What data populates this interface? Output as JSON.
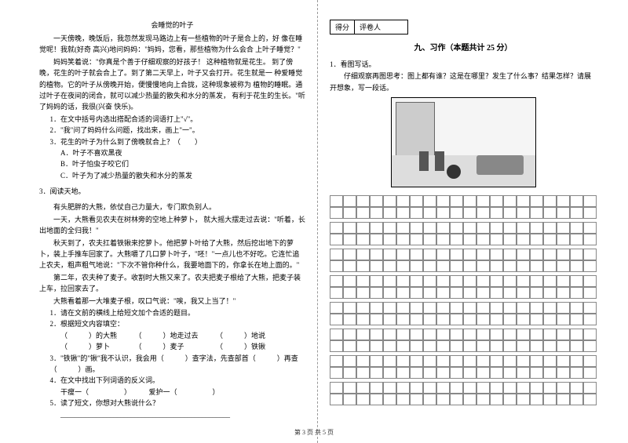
{
  "left": {
    "story1_title": "会睡觉的叶子",
    "story1_p1": "一天傍晚，晚饭后，我忽然发现马路边上有一些植物的叶子是合上的，好 像在睡觉呢！我就(好奇 高兴)地问妈妈：\"妈妈，您看，那些植物为什么会合 上叶子睡觉？\"",
    "story1_p2": "妈妈笑着说：\"你真是个善于仔细观察的好孩子！ 这种植物就是花生。 到了傍晚，花生的叶子就会合上了。到了第二天早上，叶子又会打开。花生就是一 种爱睡觉的植物。它的叶子从傍晚开始，便慢慢地向上合拢，这种现象被称为 植物的睡眠。通过叶子在夜间的闭合，就可以减少热量的散失和水分的蒸发， 有利于花生的生长。\"听了妈妈的话，我很(兴奋 快乐)。",
    "q1": "1．在文中括号内选出搭配合适的词语打上\"√\"。",
    "q2": "2．\"我\"问了妈妈什么问题，找出来，画上\"一\"。",
    "q3": "3．花生的叶子为什么到了傍晚就合上？（　　）",
    "q3a": "A．叶子不喜欢黑夜",
    "q3b": "B．叶子怕虫子咬它们",
    "q3c": "C．叶子为了减少热量的散失和水分的蒸发",
    "story2_title": "3．阅读天地。",
    "story2_p1": "有头肥胖的大熊，依仗自己力量大，专门欺负别人。",
    "story2_p2": "一天，大熊看见农夫在树林旁的空地上种萝卜， 就大摇大摆走过去说：\"听着，长出地面的全归我！\"",
    "story2_p3": "秋天到了，农夫扛着铁锹来挖萝卜。他把萝卜叶给了大熊，然后挖出地下的萝卜，装上手推车回家了。大熊嚼了几口萝卜叶子，\"呸！\"一点儿也不好吃。它连忙追上农夫，粗声粗气地说：\"下次不管你种什么，我要地面下的，你拿长在地上面的。\"",
    "story2_p4": "第二年，农夫种了麦子。收割时大熊又来了。农夫把麦子根给了大熊，把麦子装上车，拉回家去了。",
    "story2_p5": "大熊看着那一大堆麦子根，叹口气说：\"唉，我又上当了！\"",
    "sq1": "1．请在文前的横线上给短文加个合适的题目。",
    "sq2": "2．根据短文内容填空：",
    "sq2a": "（　　　）的大熊　　　（　　　）地走过去　　　（　　　）地说",
    "sq2b": "（　　　）萝卜　　　　（　　　）麦子　　　　　（　　　）铁锹",
    "sq3": "3．\"铁锹\"的\"锹\"我不认识，我会用（　　　）查字法，先查部首（　　　）再查（　　　）画。",
    "sq4": "4．在文中找出下列词语的反义词。",
    "sq4a": "干瘦一（　　　　　）　　　爱护一（　　　　　）",
    "sq5": "5．读了短文，你想对大熊说什么？",
    "sq5_line": "________________________________________________"
  },
  "right": {
    "score_label1": "得分",
    "score_label2": "评卷人",
    "section_title": "九、习作（本题共计 25 分）",
    "q1": "1．看图写话。",
    "q1_desc": "仔细观察再图思考：图上都有谁？这是在哪里？发生了什么事？结果怎样？请展开想象，写一段话。"
  },
  "footer": "第 3 页 共 5 页",
  "grid": {
    "rows_per_group": 2,
    "groups": 8,
    "cols": 20
  }
}
